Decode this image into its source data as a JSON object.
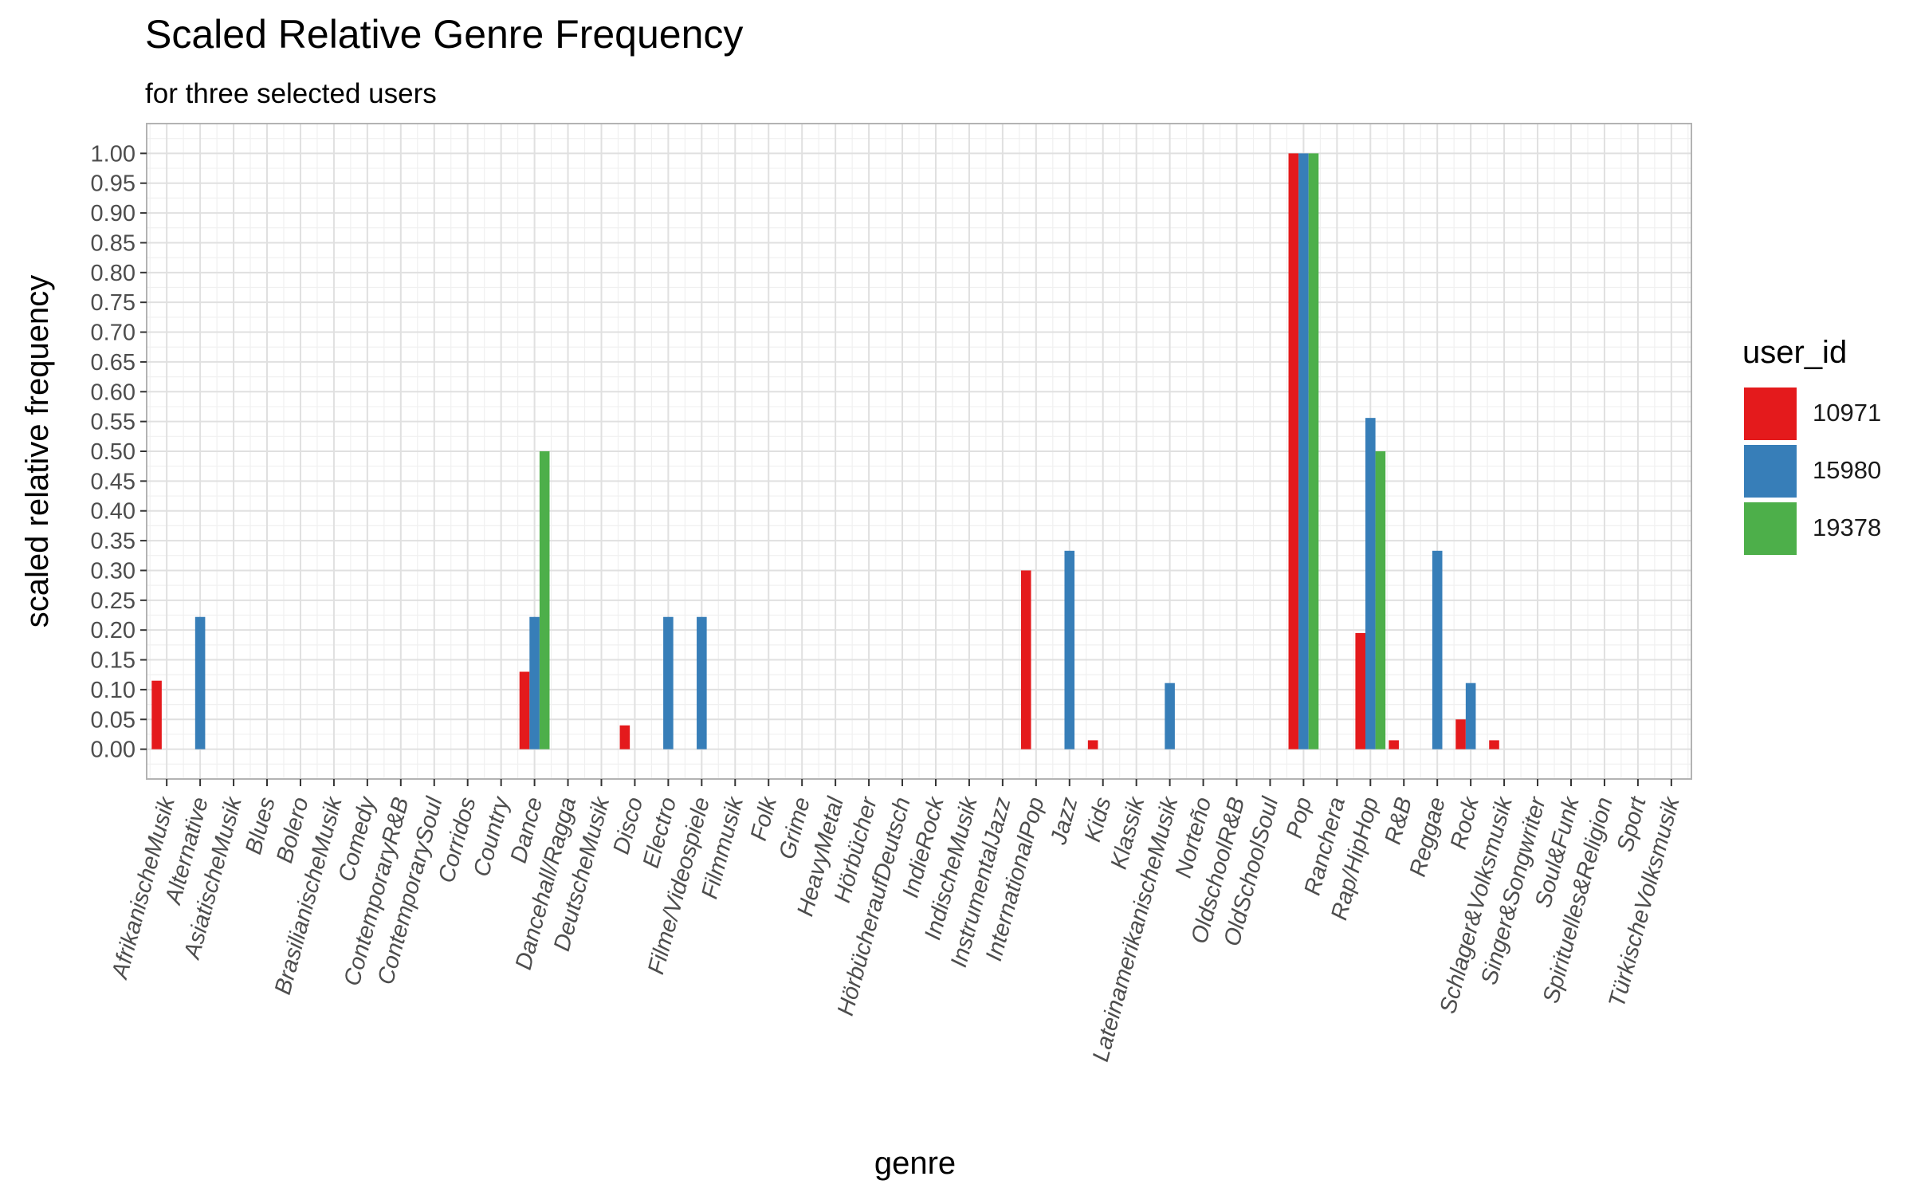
{
  "chart_data": {
    "type": "bar",
    "title": "Scaled Relative Genre Frequency",
    "subtitle": "for three selected users",
    "xlabel": "genre",
    "ylabel": "scaled relative frequency",
    "ylim": [
      -0.05,
      1.05
    ],
    "yticks": [
      "0.00",
      "0.05",
      "0.10",
      "0.15",
      "0.20",
      "0.25",
      "0.30",
      "0.35",
      "0.40",
      "0.45",
      "0.50",
      "0.55",
      "0.60",
      "0.65",
      "0.70",
      "0.75",
      "0.80",
      "0.85",
      "0.90",
      "0.95",
      "1.00"
    ],
    "grid": true,
    "legend_position": "right",
    "legend_title": "user_id",
    "categories": [
      "AfrikanischeMusik",
      "Alternative",
      "AsiatischeMusik",
      "Blues",
      "Bolero",
      "BrasilianischeMusik",
      "Comedy",
      "ContemporaryR&B",
      "ContemporarySoul",
      "Corridos",
      "Country",
      "Dance",
      "Dancehall/Ragga",
      "DeutscheMusik",
      "Disco",
      "Electro",
      "Filme/Videospiele",
      "Filmmusik",
      "Folk",
      "Grime",
      "HeavyMetal",
      "Hörbücher",
      "HörbücheraufDeutsch",
      "IndieRock",
      "IndischeMusik",
      "InstrumentalJazz",
      "InternationalPop",
      "Jazz",
      "Kids",
      "Klassik",
      "LateinamerikanischeMusik",
      "Norteño",
      "OldschoolR&B",
      "OldSchoolSoul",
      "Pop",
      "Ranchera",
      "Rap/HipHop",
      "R&B",
      "Reggae",
      "Rock",
      "Schlager&Volksmusik",
      "Singer&Songwriter",
      "Soul&Funk",
      "Spirituelles&Religion",
      "Sport",
      "TürkischeVolksmusik"
    ],
    "series": [
      {
        "name": "10971",
        "color": "#e41a1c",
        "values": [
          0.115,
          null,
          null,
          null,
          null,
          null,
          null,
          null,
          null,
          null,
          null,
          0.13,
          null,
          null,
          0.04,
          null,
          null,
          null,
          null,
          null,
          null,
          null,
          null,
          null,
          null,
          null,
          0.3,
          null,
          0.015,
          null,
          null,
          null,
          null,
          null,
          1.0,
          null,
          0.195,
          0.015,
          null,
          0.05,
          0.015,
          null,
          null,
          null,
          null,
          null
        ]
      },
      {
        "name": "15980",
        "color": "#377eb8",
        "values": [
          null,
          0.222,
          null,
          null,
          null,
          null,
          null,
          null,
          null,
          null,
          null,
          0.222,
          null,
          null,
          null,
          0.222,
          0.222,
          null,
          null,
          null,
          null,
          null,
          null,
          null,
          null,
          null,
          null,
          0.333,
          null,
          null,
          0.111,
          null,
          null,
          null,
          1.0,
          null,
          0.556,
          null,
          0.333,
          0.111,
          null,
          null,
          null,
          null,
          null,
          null
        ]
      },
      {
        "name": "19378",
        "color": "#4daf4a",
        "values": [
          null,
          null,
          null,
          null,
          null,
          null,
          null,
          null,
          null,
          null,
          null,
          0.5,
          null,
          null,
          null,
          null,
          null,
          null,
          null,
          null,
          null,
          null,
          null,
          null,
          null,
          null,
          null,
          null,
          null,
          null,
          null,
          null,
          null,
          null,
          1.0,
          null,
          0.5,
          null,
          null,
          null,
          null,
          null,
          null,
          null,
          null,
          null
        ]
      }
    ]
  }
}
